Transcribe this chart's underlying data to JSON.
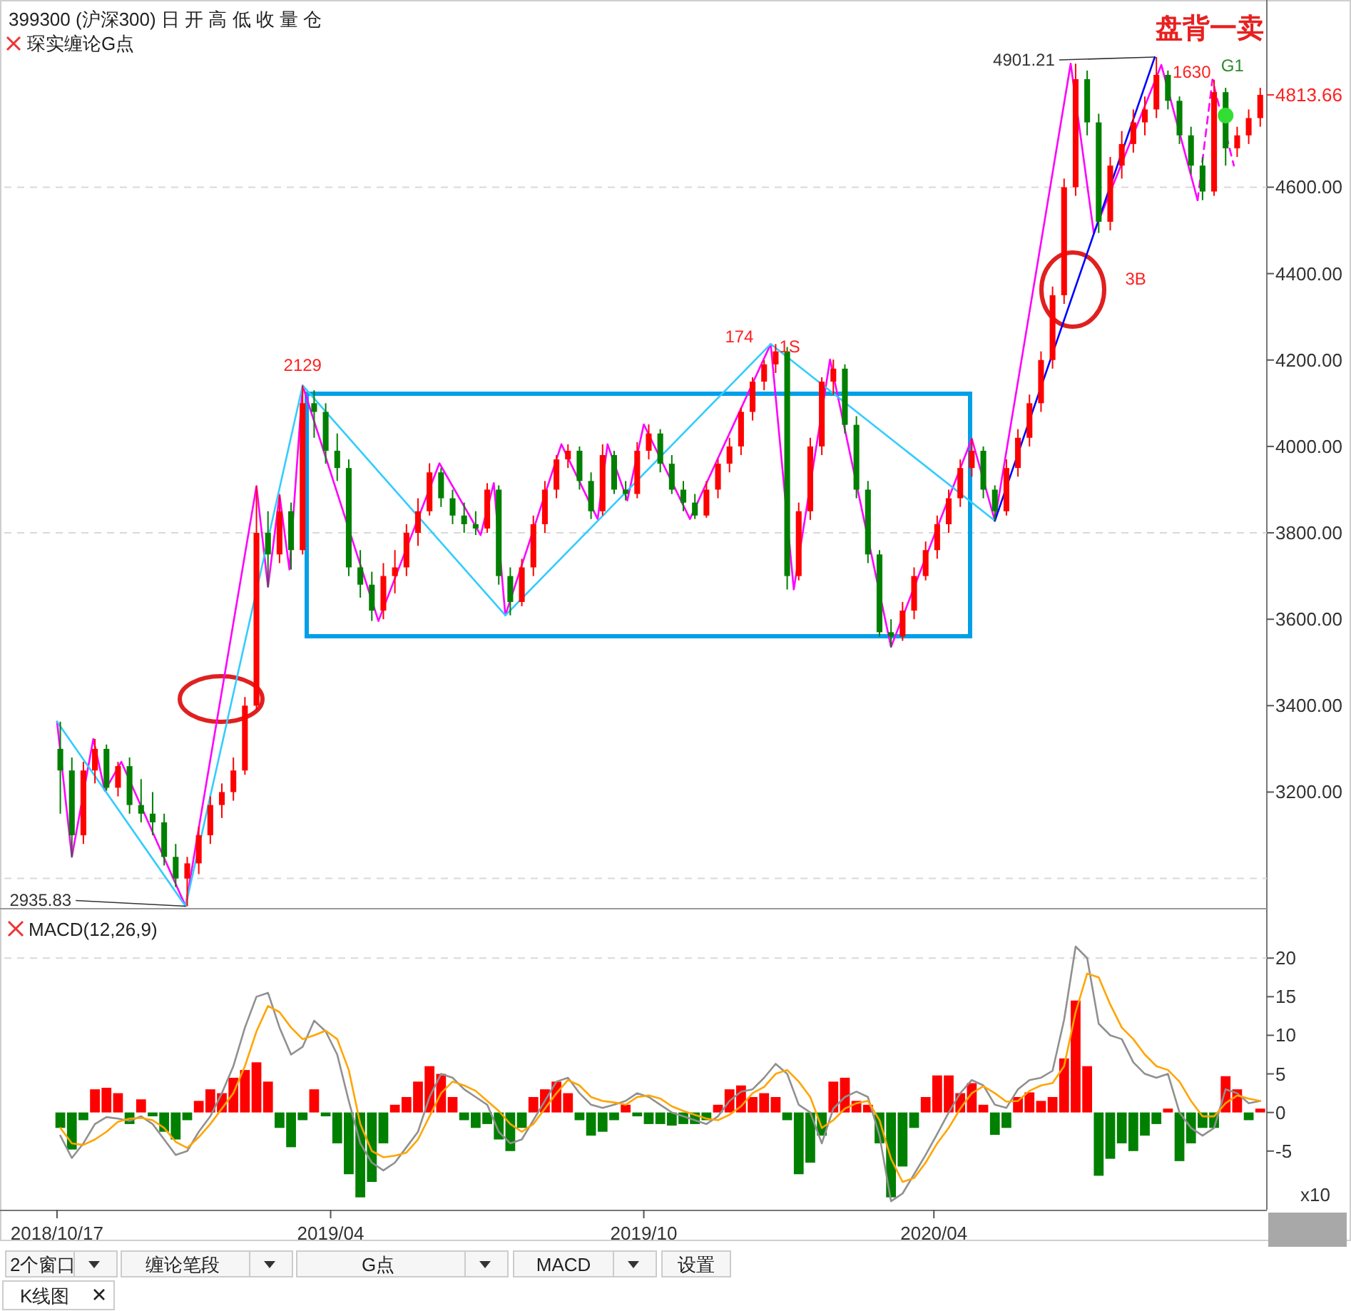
{
  "chart_data": [
    {
      "type": "candlestick",
      "title": "399300 (沪深300) 日   开 高 低 收 量 仓",
      "subtitle": "琛实缠论G点",
      "x": [
        "2018-10-19",
        "2018-10-26",
        "2018-11-02",
        "2018-11-09",
        "2018-11-16",
        "2018-11-23",
        "2018-11-30",
        "2018-12-07",
        "2018-12-14",
        "2018-12-21",
        "2018-12-28",
        "2019-01-04",
        "2019-01-11",
        "2019-01-18",
        "2019-01-25",
        "2019-02-01",
        "2019-02-08",
        "2019-02-15",
        "2019-02-22",
        "2019-03-01",
        "2019-03-08",
        "2019-03-15",
        "2019-03-22",
        "2019-03-29",
        "2019-04-05",
        "2019-04-12",
        "2019-04-19",
        "2019-04-26",
        "2019-05-03",
        "2019-05-10",
        "2019-05-17",
        "2019-05-24",
        "2019-05-31",
        "2019-06-07",
        "2019-06-14",
        "2019-06-21",
        "2019-06-28",
        "2019-07-05",
        "2019-07-12",
        "2019-07-19",
        "2019-07-26",
        "2019-08-02",
        "2019-08-09",
        "2019-08-16",
        "2019-08-23",
        "2019-08-30",
        "2019-09-06",
        "2019-09-13",
        "2019-09-20",
        "2019-09-27",
        "2019-10-04",
        "2019-10-11",
        "2019-10-18",
        "2019-10-25",
        "2019-11-01",
        "2019-11-08",
        "2019-11-15",
        "2019-11-22",
        "2019-11-29",
        "2019-12-06",
        "2019-12-13",
        "2019-12-20",
        "2019-12-27",
        "2020-01-03",
        "2020-01-10",
        "2020-01-17",
        "2020-01-24",
        "2020-01-31",
        "2020-02-07",
        "2020-02-14",
        "2020-02-21",
        "2020-02-28",
        "2020-03-06",
        "2020-03-13",
        "2020-03-20",
        "2020-03-27",
        "2020-04-03",
        "2020-04-10",
        "2020-04-17",
        "2020-04-24",
        "2020-05-01",
        "2020-05-08",
        "2020-05-15",
        "2020-05-22",
        "2020-05-29",
        "2020-06-05",
        "2020-06-12",
        "2020-06-19",
        "2020-06-26",
        "2020-07-03",
        "2020-07-10",
        "2020-07-17",
        "2020-07-24",
        "2020-07-31",
        "2020-08-07",
        "2020-08-14",
        "2020-08-21",
        "2020-08-28",
        "2020-09-04",
        "2020-09-11",
        "2020-09-18",
        "2020-09-25",
        "2020-10-02",
        "2020-10-09",
        "2020-10-16"
      ],
      "ohlc": [
        [
          3300,
          3363,
          3150,
          3250
        ],
        [
          3250,
          3280,
          3050,
          3100
        ],
        [
          3100,
          3270,
          3080,
          3250
        ],
        [
          3250,
          3323,
          3220,
          3300
        ],
        [
          3300,
          3310,
          3203,
          3210
        ],
        [
          3210,
          3270,
          3190,
          3260
        ],
        [
          3260,
          3280,
          3150,
          3170
        ],
        [
          3170,
          3230,
          3130,
          3150
        ],
        [
          3150,
          3200,
          3100,
          3130
        ],
        [
          3130,
          3150,
          3030,
          3050
        ],
        [
          3050,
          3080,
          2980,
          3000
        ],
        [
          3000,
          3050,
          2935.83,
          3035
        ],
        [
          3035,
          3120,
          3010,
          3100
        ],
        [
          3100,
          3190,
          3080,
          3170
        ],
        [
          3170,
          3220,
          3140,
          3200
        ],
        [
          3200,
          3280,
          3180,
          3250
        ],
        [
          3250,
          3420,
          3240,
          3400
        ],
        [
          3400,
          3908,
          3390,
          3800
        ],
        [
          3800,
          3850,
          3675,
          3750
        ],
        [
          3750,
          3888,
          3730,
          3850
        ],
        [
          3850,
          3870,
          3715,
          3760
        ],
        [
          3760,
          4141,
          3750,
          4100
        ],
        [
          4100,
          4130,
          4020,
          4080
        ],
        [
          4080,
          4100,
          3960,
          3990
        ],
        [
          3990,
          4030,
          3920,
          3950
        ],
        [
          3950,
          3970,
          3700,
          3720
        ],
        [
          3720,
          3760,
          3650,
          3680
        ],
        [
          3680,
          3710,
          3596,
          3620
        ],
        [
          3620,
          3730,
          3600,
          3700
        ],
        [
          3700,
          3760,
          3660,
          3720
        ],
        [
          3720,
          3820,
          3700,
          3800
        ],
        [
          3800,
          3880,
          3770,
          3850
        ],
        [
          3850,
          3961,
          3840,
          3940
        ],
        [
          3940,
          3950,
          3860,
          3880
        ],
        [
          3880,
          3900,
          3820,
          3840
        ],
        [
          3840,
          3870,
          3800,
          3820
        ],
        [
          3820,
          3850,
          3795,
          3810
        ],
        [
          3810,
          3915,
          3800,
          3900
        ],
        [
          3900,
          3910,
          3680,
          3700
        ],
        [
          3700,
          3720,
          3609,
          3640
        ],
        [
          3640,
          3740,
          3630,
          3720
        ],
        [
          3720,
          3840,
          3700,
          3820
        ],
        [
          3820,
          3920,
          3800,
          3900
        ],
        [
          3900,
          3980,
          3880,
          3970
        ],
        [
          3970,
          4005,
          3950,
          3990
        ],
        [
          3990,
          4000,
          3900,
          3920
        ],
        [
          3920,
          3940,
          3832,
          3850
        ],
        [
          3850,
          4005,
          3840,
          3980
        ],
        [
          3980,
          3990,
          3890,
          3900
        ],
        [
          3900,
          3920,
          3875,
          3890
        ],
        [
          3890,
          4010,
          3880,
          3990
        ],
        [
          3990,
          4051,
          3970,
          4030
        ],
        [
          4030,
          4040,
          3940,
          3960
        ],
        [
          3960,
          3980,
          3890,
          3900
        ],
        [
          3900,
          3920,
          3850,
          3870
        ],
        [
          3870,
          3890,
          3832,
          3840
        ],
        [
          3840,
          3920,
          3835,
          3900
        ],
        [
          3900,
          3970,
          3880,
          3960
        ],
        [
          3960,
          4020,
          3940,
          4000
        ],
        [
          4000,
          4090,
          3980,
          4080
        ],
        [
          4080,
          4160,
          4060,
          4150
        ],
        [
          4150,
          4200,
          4130,
          4190
        ],
        [
          4190,
          4237,
          4170,
          4220
        ],
        [
          4220,
          4230,
          3669,
          3700
        ],
        [
          3700,
          3870,
          3690,
          3850
        ],
        [
          3850,
          4020,
          3830,
          4000
        ],
        [
          4000,
          4160,
          3980,
          4150
        ],
        [
          4150,
          4201,
          4120,
          4180
        ],
        [
          4180,
          4190,
          4030,
          4050
        ],
        [
          4050,
          4070,
          3880,
          3900
        ],
        [
          3900,
          3920,
          3730,
          3750
        ],
        [
          3750,
          3760,
          3560,
          3570
        ],
        [
          3570,
          3600,
          3536,
          3560
        ],
        [
          3560,
          3640,
          3550,
          3620
        ],
        [
          3620,
          3720,
          3600,
          3700
        ],
        [
          3700,
          3780,
          3690,
          3760
        ],
        [
          3760,
          3840,
          3740,
          3820
        ],
        [
          3820,
          3900,
          3800,
          3880
        ],
        [
          3880,
          3970,
          3860,
          3950
        ],
        [
          3950,
          4018,
          3930,
          3990
        ],
        [
          3990,
          4000,
          3880,
          3900
        ],
        [
          3900,
          3910,
          3828,
          3850
        ],
        [
          3850,
          3970,
          3840,
          3950
        ],
        [
          3950,
          4040,
          3930,
          4020
        ],
        [
          4020,
          4120,
          4000,
          4100
        ],
        [
          4100,
          4220,
          4080,
          4200
        ],
        [
          4200,
          4370,
          4180,
          4350
        ],
        [
          4350,
          4620,
          4330,
          4600
        ],
        [
          4600,
          4886,
          4580,
          4850
        ],
        [
          4850,
          4870,
          4720,
          4750
        ],
        [
          4750,
          4770,
          4494,
          4520
        ],
        [
          4520,
          4670,
          4500,
          4650
        ],
        [
          4650,
          4730,
          4620,
          4700
        ],
        [
          4700,
          4780,
          4680,
          4750
        ],
        [
          4750,
          4810,
          4720,
          4780
        ],
        [
          4780,
          4901.21,
          4760,
          4860
        ],
        [
          4860,
          4870,
          4780,
          4800
        ],
        [
          4800,
          4810,
          4700,
          4720
        ],
        [
          4720,
          4740,
          4630,
          4650
        ],
        [
          4650,
          4670,
          4570,
          4590
        ],
        [
          4590,
          4849,
          4580,
          4820
        ],
        [
          4820,
          4830,
          4650,
          4690
        ],
        [
          4690,
          4740,
          4670,
          4720
        ],
        [
          4720,
          4780,
          4700,
          4760
        ],
        [
          4760,
          4830,
          4740,
          4813.66
        ]
      ],
      "colors": [
        "#008000",
        "#008000",
        "#ff0000",
        "#ff0000",
        "#008000",
        "#ff0000",
        "#008000",
        "#008000",
        "#008000",
        "#008000",
        "#008000",
        "#ff0000",
        "#ff0000",
        "#ff0000",
        "#ff0000",
        "#ff0000",
        "#ff0000",
        "#ff0000",
        "#008000",
        "#ff0000",
        "#008000",
        "#ff0000",
        "#008000",
        "#008000",
        "#008000",
        "#008000",
        "#008000",
        "#008000",
        "#ff0000",
        "#ff0000",
        "#ff0000",
        "#ff0000",
        "#ff0000",
        "#008000",
        "#008000",
        "#008000",
        "#008000",
        "#ff0000",
        "#008000",
        "#008000",
        "#ff0000",
        "#ff0000",
        "#ff0000",
        "#ff0000",
        "#ff0000",
        "#008000",
        "#008000",
        "#ff0000",
        "#008000",
        "#008000",
        "#ff0000",
        "#ff0000",
        "#008000",
        "#008000",
        "#008000",
        "#008000",
        "#ff0000",
        "#ff0000",
        "#ff0000",
        "#ff0000",
        "#ff0000",
        "#ff0000",
        "#ff0000",
        "#008000",
        "#ff0000",
        "#ff0000",
        "#ff0000",
        "#ff0000",
        "#008000",
        "#008000",
        "#008000",
        "#008000",
        "#008000",
        "#ff0000",
        "#ff0000",
        "#ff0000",
        "#ff0000",
        "#ff0000",
        "#ff0000",
        "#ff0000",
        "#008000",
        "#008000",
        "#ff0000",
        "#ff0000",
        "#ff0000",
        "#ff0000",
        "#ff0000",
        "#ff0000",
        "#ff0000",
        "#008000",
        "#008000",
        "#ff0000",
        "#ff0000",
        "#ff0000",
        "#ff0000",
        "#ff0000",
        "#008000",
        "#008000",
        "#008000",
        "#008000",
        "#ff0000",
        "#008000",
        "#ff0000",
        "#ff0000",
        "#ff0000"
      ],
      "series": [
        {
          "type": "line",
          "color": "#ff00ff",
          "x": [
            "2018-10-17",
            "2018-10-26",
            "2018-11-08",
            "2018-11-15",
            "2018-11-25",
            "2019-01-03",
            "2019-02-15",
            "2019-02-22",
            "2019-03-01",
            "2019-03-07",
            "2019-03-15",
            "2019-04-30",
            "2019-06-06",
            "2019-07-01",
            "2019-07-09",
            "2019-07-16",
            "2019-08-19",
            "2019-09-10",
            "2019-09-16",
            "2019-09-28",
            "2019-10-08",
            "2019-11-05",
            "2019-12-24",
            "2020-01-07",
            "2020-01-29",
            "2020-03-06",
            "2020-04-24",
            "2020-05-08",
            "2020-06-23",
            "2020-07-07",
            "2020-08-17",
            "2020-09-08"
          ],
          "values": [
            3363,
            3050,
            3323,
            3203,
            3270,
            2936,
            3908,
            3675,
            3888,
            3715,
            4141,
            3596,
            3961,
            3795,
            3915,
            3609,
            4005,
            3832,
            4005,
            3875,
            4051,
            3832,
            4237,
            3669,
            4201,
            3536,
            4018,
            3828,
            4886,
            4494,
            4883,
            4570
          ]
        },
        {
          "type": "line",
          "color": "#ff00ff",
          "line_style": "dashed",
          "x": [
            "2020-09-08",
            "2020-09-17",
            "2020-09-30"
          ],
          "values": [
            4570,
            4849,
            4650
          ]
        },
        {
          "type": "line",
          "color": "#33ccff",
          "x": [
            "2018-10-17",
            "2019-01-03",
            "2019-03-15",
            "2019-07-16",
            "2019-12-24",
            "2020-05-08"
          ],
          "values": [
            3363,
            2936,
            4141,
            3609,
            4237,
            3828
          ]
        },
        {
          "type": "line",
          "color": "#0000ff",
          "x": [
            "2020-05-08",
            "2020-08-13"
          ],
          "values": [
            3828,
            4901
          ]
        },
        {
          "type": "scatter",
          "color": "#33dd33",
          "marker": "circle",
          "x": [
            "2020-09-25"
          ],
          "values": [
            4766
          ]
        }
      ],
      "xlim": [
        "2018-09-15",
        "2020-10-20"
      ],
      "ylim": [
        2930,
        5030
      ],
      "yticks": [
        {
          "value": 3200,
          "label": "3200.00"
        },
        {
          "value": 3400,
          "label": "3400.00"
        },
        {
          "value": 3600,
          "label": "3600.00"
        },
        {
          "value": 3800,
          "label": "3800.00"
        },
        {
          "value": 4000,
          "label": "4000.00"
        },
        {
          "value": 4200,
          "label": "4200.00"
        },
        {
          "value": 4400,
          "label": "4400.00"
        },
        {
          "value": 4600,
          "label": "4600.00"
        }
      ],
      "tick_labels": "y",
      "ref_lines": [
        {
          "axis": "y",
          "value": 3000,
          "color": "#d9d9d9",
          "line_style": "dashed"
        },
        {
          "axis": "y",
          "value": 3800,
          "color": "#d9d9d9",
          "line_style": "dashed"
        },
        {
          "axis": "y",
          "value": 4600,
          "color": "#d9d9d9",
          "line_style": "dashed"
        }
      ],
      "annotations": [
        {
          "text": "2129",
          "x": "2019-03-15",
          "y": 4141
        },
        {
          "text": "174",
          "x": "2019-12-24",
          "y": 4237
        },
        {
          "text": "1S",
          "x": "2019-12-24",
          "y": 4237
        },
        {
          "text": "4901.21",
          "x": "2020-08-13",
          "y": 4901.21
        },
        {
          "text": "1630",
          "x": "2020-08-17",
          "y": 4883
        },
        {
          "text": "3B",
          "x": "2020-07-07",
          "y": 4494
        },
        {
          "text": "G1",
          "x": "2020-09-17",
          "y": 4849
        },
        {
          "text": "2935.83",
          "x": "2019-01-03",
          "y": 2935.83
        },
        {
          "text": "4813.66",
          "x": "2020-10-16",
          "y": 4813.66
        },
        "盘背一卖"
      ]
    },
    {
      "type": "bar",
      "title": "MACD(12,26,9)",
      "x": [
        "2018-10-19",
        "2018-10-26",
        "2018-11-02",
        "2018-11-09",
        "2018-11-16",
        "2018-11-23",
        "2018-11-30",
        "2018-12-07",
        "2018-12-14",
        "2018-12-21",
        "2018-12-28",
        "2019-01-04",
        "2019-01-11",
        "2019-01-18",
        "2019-01-25",
        "2019-02-01",
        "2019-02-08",
        "2019-02-15",
        "2019-02-22",
        "2019-03-01",
        "2019-03-08",
        "2019-03-15",
        "2019-03-22",
        "2019-03-29",
        "2019-04-05",
        "2019-04-12",
        "2019-04-19",
        "2019-04-26",
        "2019-05-03",
        "2019-05-10",
        "2019-05-17",
        "2019-05-24",
        "2019-05-31",
        "2019-06-07",
        "2019-06-14",
        "2019-06-21",
        "2019-06-28",
        "2019-07-05",
        "2019-07-12",
        "2019-07-19",
        "2019-07-26",
        "2019-08-02",
        "2019-08-09",
        "2019-08-16",
        "2019-08-23",
        "2019-08-30",
        "2019-09-06",
        "2019-09-13",
        "2019-09-20",
        "2019-09-27",
        "2019-10-04",
        "2019-10-11",
        "2019-10-18",
        "2019-10-25",
        "2019-11-01",
        "2019-11-08",
        "2019-11-15",
        "2019-11-22",
        "2019-11-29",
        "2019-12-06",
        "2019-12-13",
        "2019-12-20",
        "2019-12-27",
        "2020-01-03",
        "2020-01-10",
        "2020-01-17",
        "2020-01-24",
        "2020-01-31",
        "2020-02-07",
        "2020-02-14",
        "2020-02-21",
        "2020-02-28",
        "2020-03-06",
        "2020-03-13",
        "2020-03-20",
        "2020-03-27",
        "2020-04-03",
        "2020-04-10",
        "2020-04-17",
        "2020-04-24",
        "2020-05-01",
        "2020-05-08",
        "2020-05-15",
        "2020-05-22",
        "2020-05-29",
        "2020-06-05",
        "2020-06-12",
        "2020-06-19",
        "2020-06-26",
        "2020-07-03",
        "2020-07-10",
        "2020-07-17",
        "2020-07-24",
        "2020-07-31",
        "2020-08-07",
        "2020-08-14",
        "2020-08-21",
        "2020-08-28",
        "2020-09-04",
        "2020-09-11",
        "2020-09-18",
        "2020-09-25",
        "2020-10-02",
        "2020-10-09",
        "2020-10-16"
      ],
      "series": [
        {
          "values": [
            -2.0,
            -4.8,
            -1.0,
            3.0,
            3.2,
            2.5,
            -1.5,
            1.7,
            -0.5,
            -2.5,
            -3.5,
            -1.0,
            1.5,
            3.0,
            2.5,
            4.5,
            5.5,
            6.5,
            4.0,
            -2.0,
            -4.5,
            -1.0,
            3.0,
            -0.5,
            -4.0,
            -8.0,
            -11.0,
            -9.0,
            -4.0,
            1.0,
            2.0,
            4.0,
            6.0,
            5.0,
            2.0,
            -1.0,
            -2.0,
            -1.5,
            -3.5,
            -5.0,
            -2.0,
            2.0,
            3.0,
            4.0,
            2.5,
            -1.0,
            -3.0,
            -2.5,
            -1.0,
            1.0,
            -0.5,
            -1.5,
            -1.5,
            -1.7,
            -1.5,
            -1.5,
            -1.0,
            1.0,
            3.0,
            3.5,
            2.0,
            2.5,
            2.0,
            -1.0,
            -8.0,
            -6.5,
            -3.0,
            4.0,
            4.5,
            1.5,
            1.0,
            -4.0,
            -11.0,
            -7.0,
            -2.0,
            2.0,
            4.8,
            4.8,
            2.5,
            3.8,
            1.0,
            -2.9,
            -2.0,
            2.0,
            2.6,
            1.5,
            2.0,
            7.0,
            14.5,
            6.0,
            -8.2,
            -6.0,
            -4.0,
            -5.0,
            -3.0,
            -1.5,
            0.5,
            -6.3,
            -4.0,
            -2.0,
            -2.0,
            4.7,
            3.0,
            -1.0,
            0.5
          ],
          "colors": [
            "#008000",
            "#008000",
            "#008000",
            "#ff0000",
            "#ff0000",
            "#ff0000",
            "#008000",
            "#ff0000",
            "#008000",
            "#008000",
            "#008000",
            "#008000",
            "#ff0000",
            "#ff0000",
            "#ff0000",
            "#ff0000",
            "#ff0000",
            "#ff0000",
            "#ff0000",
            "#008000",
            "#008000",
            "#008000",
            "#ff0000",
            "#008000",
            "#008000",
            "#008000",
            "#008000",
            "#008000",
            "#008000",
            "#ff0000",
            "#ff0000",
            "#ff0000",
            "#ff0000",
            "#ff0000",
            "#ff0000",
            "#008000",
            "#008000",
            "#008000",
            "#008000",
            "#008000",
            "#008000",
            "#ff0000",
            "#ff0000",
            "#ff0000",
            "#ff0000",
            "#008000",
            "#008000",
            "#008000",
            "#008000",
            "#ff0000",
            "#008000",
            "#008000",
            "#008000",
            "#008000",
            "#008000",
            "#008000",
            "#008000",
            "#ff0000",
            "#ff0000",
            "#ff0000",
            "#ff0000",
            "#ff0000",
            "#ff0000",
            "#008000",
            "#008000",
            "#008000",
            "#008000",
            "#ff0000",
            "#ff0000",
            "#ff0000",
            "#ff0000",
            "#008000",
            "#008000",
            "#008000",
            "#008000",
            "#ff0000",
            "#ff0000",
            "#ff0000",
            "#ff0000",
            "#ff0000",
            "#ff0000",
            "#008000",
            "#008000",
            "#ff0000",
            "#ff0000",
            "#ff0000",
            "#ff0000",
            "#ff0000",
            "#ff0000",
            "#ff0000",
            "#008000",
            "#008000",
            "#008000",
            "#008000",
            "#008000",
            "#008000",
            "#ff0000",
            "#008000",
            "#008000",
            "#008000",
            "#008000",
            "#ff0000",
            "#ff0000",
            "#008000",
            "#ff0000"
          ]
        },
        {
          "type": "line",
          "color": "#909090",
          "values": [
            -3.0,
            -5.9,
            -4.0,
            -1.5,
            -0.6,
            -0.8,
            -1.1,
            -0.5,
            -1.5,
            -3.5,
            -5.5,
            -5.0,
            -2.5,
            -0.5,
            2.5,
            6.0,
            11.0,
            15.0,
            15.5,
            11.0,
            7.5,
            8.5,
            11.9,
            10.5,
            7.5,
            1.5,
            -4.0,
            -6.5,
            -7.5,
            -6.5,
            -4.5,
            -2.5,
            2.0,
            5.0,
            4.5,
            3.0,
            2.0,
            1.0,
            -2.5,
            -4.0,
            -3.5,
            -1.0,
            1.5,
            4.0,
            4.5,
            2.5,
            1.0,
            0.6,
            1.0,
            1.5,
            2.5,
            2.0,
            1.0,
            0.0,
            -0.5,
            -1.0,
            -1.5,
            -0.5,
            1.5,
            2.7,
            3.0,
            4.5,
            6.3,
            5.0,
            1.0,
            0.0,
            -4.0,
            0.5,
            2.0,
            2.7,
            2.0,
            -3.0,
            -11.5,
            -10.5,
            -8.0,
            -5.5,
            -2.8,
            0.0,
            2.5,
            4.2,
            3.5,
            1.0,
            0.6,
            3.0,
            4.2,
            4.5,
            5.4,
            12.0,
            21.5,
            20.0,
            11.5,
            10.0,
            9.5,
            6.5,
            5.0,
            4.5,
            5.0,
            0.0,
            -2.0,
            -3.0,
            -2.0,
            3.0,
            2.5,
            1.2,
            1.5
          ]
        },
        {
          "type": "line",
          "color": "#ffa500",
          "values": [
            -2.0,
            -4.0,
            -4.2,
            -3.5,
            -2.5,
            -1.2,
            -0.8,
            -0.7,
            -1.0,
            -2.0,
            -3.8,
            -4.6,
            -3.2,
            -1.5,
            0.5,
            2.5,
            6.0,
            10.5,
            13.8,
            13.0,
            11.0,
            9.5,
            10.0,
            10.6,
            9.5,
            5.5,
            -1.5,
            -5.0,
            -5.8,
            -5.6,
            -5.2,
            -3.5,
            -0.5,
            2.5,
            4.0,
            3.5,
            2.8,
            1.5,
            0.2,
            -1.5,
            -2.5,
            -1.5,
            0.5,
            2.5,
            4.2,
            3.5,
            2.0,
            1.5,
            1.3,
            1.0,
            2.0,
            2.2,
            1.8,
            0.8,
            0.2,
            -0.3,
            -0.8,
            -1.0,
            -0.3,
            0.8,
            2.5,
            3.3,
            5.0,
            5.5,
            4.0,
            2.0,
            -2.0,
            -1.0,
            0.5,
            1.2,
            1.5,
            -1.0,
            -6.0,
            -9.0,
            -8.5,
            -6.5,
            -4.0,
            -2.0,
            0.5,
            2.5,
            3.4,
            2.5,
            1.4,
            1.5,
            2.8,
            3.5,
            3.8,
            6.0,
            13.0,
            18.0,
            17.5,
            14.0,
            11.0,
            9.5,
            7.5,
            6.0,
            5.5,
            4.0,
            1.5,
            -0.5,
            -0.5,
            1.2,
            2.2,
            1.8,
            1.5
          ]
        }
      ],
      "xlim": [
        "2018-09-15",
        "2020-10-20"
      ],
      "ylim": [
        -12.6,
        26.4
      ],
      "xticks": [
        {
          "value": "2018-10-17",
          "label": "2018/10/17"
        },
        {
          "value": "2019-04-01",
          "label": "2019/04"
        },
        {
          "value": "2019-10-08",
          "label": "2019/10"
        },
        {
          "value": "2020-04-01",
          "label": "2020/04"
        }
      ],
      "yticks": [
        -5,
        0,
        5,
        10,
        15,
        20
      ],
      "ref_lines": [
        {
          "axis": "y",
          "value": 20,
          "color": "#d9d9d9",
          "line_style": "dashed"
        }
      ],
      "annotations": [
        "x10",
        "2个窗口",
        "缠论笔段",
        "G点",
        "MACD",
        "设置",
        "K线图"
      ]
    }
  ]
}
